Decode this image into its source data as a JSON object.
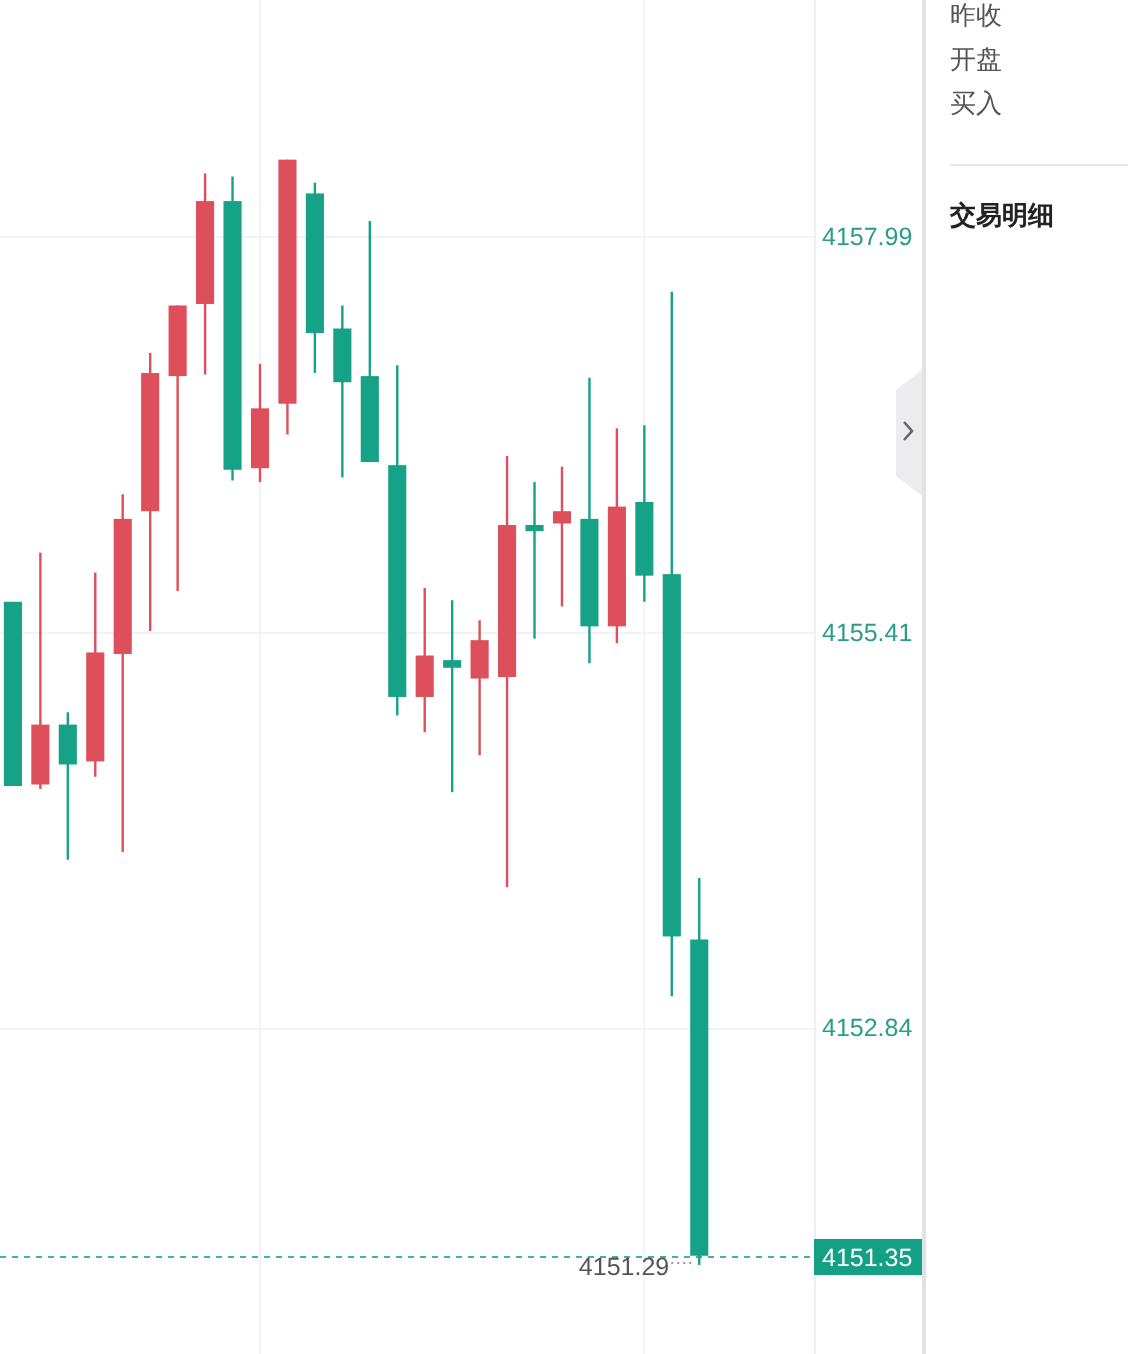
{
  "chart_data": [
    {
      "type": "candlestick",
      "categories": [
        null,
        null,
        null,
        null,
        null,
        null,
        null,
        null,
        null,
        null,
        null,
        null,
        null,
        null,
        null,
        null,
        null,
        null,
        null,
        null,
        null,
        null,
        null,
        null,
        null,
        null
      ],
      "ohlc": [
        [
          4155.61,
          4155.61,
          4154.41,
          4154.41
        ],
        [
          4154.42,
          4155.93,
          4154.39,
          4154.81
        ],
        [
          4154.81,
          4154.89,
          4153.93,
          4154.55
        ],
        [
          4154.57,
          4155.8,
          4154.47,
          4155.28
        ],
        [
          4155.27,
          4156.31,
          4153.98,
          4156.15
        ],
        [
          4156.2,
          4157.23,
          4155.42,
          4157.1
        ],
        [
          4157.08,
          4157.54,
          4155.68,
          4157.54
        ],
        [
          4157.55,
          4158.4,
          4157.09,
          4158.22
        ],
        [
          4158.22,
          4158.38,
          4156.4,
          4156.47
        ],
        [
          4156.48,
          4157.16,
          4156.39,
          4156.87
        ],
        [
          4156.9,
          4158.49,
          4156.7,
          4158.49
        ],
        [
          4158.27,
          4158.34,
          4157.1,
          4157.36
        ],
        [
          4157.39,
          4157.54,
          4156.42,
          4157.04
        ],
        [
          4157.08,
          4158.09,
          4156.52,
          4156.52
        ],
        [
          4156.5,
          4157.15,
          4154.87,
          4154.99
        ],
        [
          4154.99,
          4155.7,
          4154.76,
          4155.26
        ],
        [
          4155.23,
          4155.62,
          4154.37,
          4155.18
        ],
        [
          4155.11,
          4155.49,
          4154.61,
          4155.36
        ],
        [
          4155.12,
          4156.56,
          4153.75,
          4156.11
        ],
        [
          4156.11,
          4156.39,
          4155.37,
          4156.07
        ],
        [
          4156.12,
          4156.49,
          4155.58,
          4156.2
        ],
        [
          4156.15,
          4157.07,
          4155.21,
          4155.45
        ],
        [
          4155.45,
          4156.74,
          4155.34,
          4156.23
        ],
        [
          4156.26,
          4156.76,
          4155.61,
          4155.78
        ],
        [
          4155.79,
          4157.63,
          4153.04,
          4153.43
        ],
        [
          4153.41,
          4153.81,
          4151.29,
          4151.35
        ]
      ],
      "colors": [
        "#16a286",
        "#dc4f5b",
        "#16a286",
        "#dc4f5b",
        "#dc4f5b",
        "#dc4f5b",
        "#dc4f5b",
        "#dc4f5b",
        "#16a286",
        "#dc4f5b",
        "#dc4f5b",
        "#16a286",
        "#16a286",
        "#16a286",
        "#16a286",
        "#dc4f5b",
        "#16a286",
        "#dc4f5b",
        "#dc4f5b",
        "#16a286",
        "#dc4f5b",
        "#16a286",
        "#dc4f5b",
        "#16a286",
        "#16a286",
        "#16a286"
      ],
      "ylim": [
        4150.71,
        4159.53
      ],
      "yticks": [
        4157.99,
        4155.41,
        4152.84
      ],
      "grid": "y",
      "tick_labels": "y",
      "ref_lines": [
        {
          "axis": "y",
          "value": 4151.35,
          "label": "4151.35",
          "color": "#14a085",
          "line_style": "dashed"
        }
      ],
      "annotations": [
        "4151.29"
      ]
    },
    {
      "type": "other",
      "annotations": [
        "昨收",
        "开盘",
        "买入",
        "交易明细"
      ]
    }
  ]
}
